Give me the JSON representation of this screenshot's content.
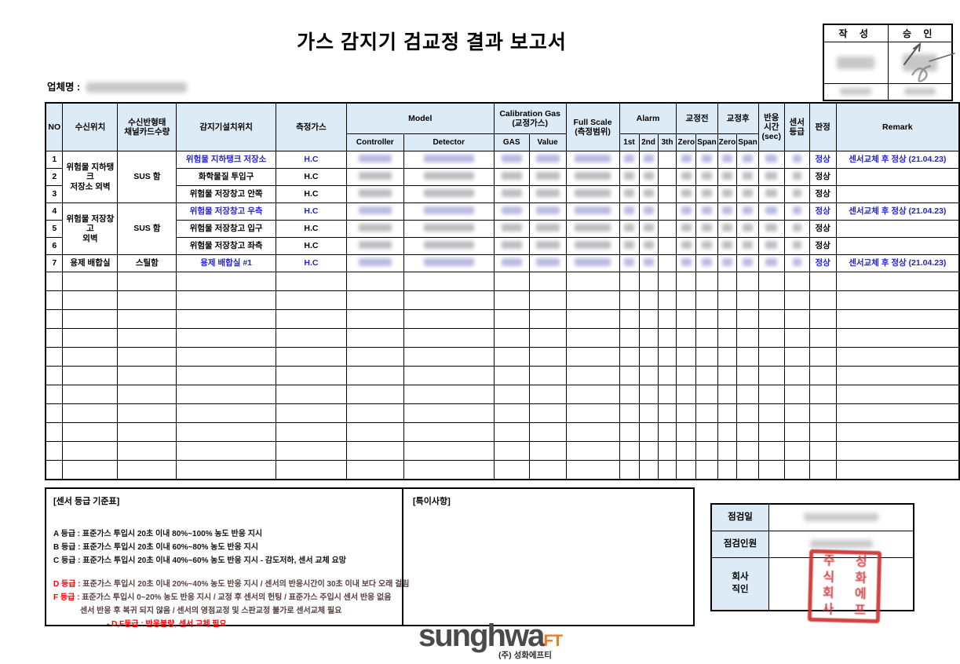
{
  "title": "가스 감지기 검교정 결과 보고서",
  "sign_box": {
    "left_label": "작 성",
    "right_label": "승 인"
  },
  "company": {
    "label": "업체명 :"
  },
  "table": {
    "headers": {
      "no": "NO",
      "receiver_loc": "수신위치",
      "panel": "수신반형태\n채널카드수량",
      "detector_loc": "감지기설치위치",
      "gas": "측정가스",
      "model": "Model",
      "controller": "Controller",
      "detector": "Detector",
      "cal_gas": "Calibration Gas\n(교정가스)",
      "cal_gas_sub": "GAS",
      "cal_value_sub": "Value",
      "full_scale": "Full Scale\n(측정범위)",
      "alarm": "Alarm",
      "alarm1": "1st",
      "alarm2": "2nd",
      "alarm3": "3th",
      "pre_cal": "교정전",
      "post_cal": "교정후",
      "zero": "Zero",
      "span": "Span",
      "resp_time": "반응\n시간\n(sec)",
      "sensor_grade": "센서\n등급",
      "judgement": "판정",
      "remark": "Remark"
    },
    "rows": [
      {
        "no": "1",
        "receiver_loc": "위험물 지하탱크\n저장소 외벽",
        "receiver_span": 3,
        "panel": "SUS 함",
        "panel_span": 3,
        "location": "위험물 지하탱크 저장소",
        "gas": "H.C",
        "highlight": true,
        "judgement": "정상",
        "remark": "센서교체 후 정상 (21.04.23)"
      },
      {
        "no": "2",
        "location": "화학물질 투입구",
        "gas": "H.C",
        "highlight": false,
        "judgement": "정상",
        "remark": ""
      },
      {
        "no": "3",
        "location": "위험물 저장창고 안쪽",
        "gas": "H.C",
        "highlight": false,
        "judgement": "정상",
        "remark": ""
      },
      {
        "no": "4",
        "receiver_loc": "위험물 저장창고\n외벽",
        "receiver_span": 3,
        "panel": "SUS 함",
        "panel_span": 3,
        "location": "위험물 저장창고 우측",
        "gas": "H.C",
        "highlight": true,
        "judgement": "정상",
        "remark": "센서교체 후 정상 (21.04.23)"
      },
      {
        "no": "5",
        "location": "위험물 저장창고 입구",
        "gas": "H.C",
        "highlight": false,
        "judgement": "정상",
        "remark": ""
      },
      {
        "no": "6",
        "location": "위험물 저장창고 좌측",
        "gas": "H.C",
        "highlight": false,
        "judgement": "정상",
        "remark": ""
      },
      {
        "no": "7",
        "receiver_loc": "용제 배합실",
        "receiver_span": 1,
        "panel": "스틸함",
        "panel_span": 1,
        "location": "용제 배합실 #1",
        "gas": "H.C",
        "highlight": true,
        "judgement": "정상",
        "remark": "센서교체 후 정상 (21.04.23)"
      }
    ],
    "empty_row_count": 11
  },
  "sensor_grade_table": {
    "title": "[센서 등급 기준표]",
    "lines": [
      {
        "parts": [
          {
            "text": "A 등급 : 표준가스 투입시 20초 이내 80%~100% 농도 반응 지시",
            "color": "black"
          }
        ]
      },
      {
        "parts": [
          {
            "text": "B 등급 : 표준가스 투입시 20초 이내 60%~80% 농도 반응 지시",
            "color": "black"
          }
        ]
      },
      {
        "parts": [
          {
            "text": "C 등급 : 표준가스 투입시 20초 이내 40%~60% 농도 반응 지시 - 감도저하, 센서 교체 요망",
            "color": "black"
          }
        ]
      },
      {
        "gap": true
      },
      {
        "parts": [
          {
            "text": "D 등급 : ",
            "color": "red"
          },
          {
            "text": "표준가스 투입시 20초 이내 20%~40% 농도 반응 지시 / 센서의 반응시간이 30초 이내 보다 오래 걸림",
            "color": "dark"
          }
        ]
      },
      {
        "parts": [
          {
            "text": "F 등급 : ",
            "color": "red"
          },
          {
            "text": "표준가스 투입시 0~20% 농도 반응 지시 / 교정 후 센서의 헌팅 / 표준가스 주입시 센서 반응 없음",
            "color": "dark"
          }
        ]
      },
      {
        "indent": 1,
        "parts": [
          {
            "text": "센서 반응 후 복귀 되지 않음 / 센서의 영점교정 및 스판교정 불가로 센서교체 필요",
            "color": "dark"
          }
        ]
      },
      {
        "indent": 2,
        "parts": [
          {
            "text": "- D,F등급 : 반응불량, 센서 교체 필요",
            "color": "red"
          }
        ]
      }
    ]
  },
  "special_notes": {
    "title": "[특이사항]"
  },
  "inspection": {
    "rows": [
      {
        "label": "점검일",
        "redacted": true
      },
      {
        "label": "점검인원",
        "redacted": true
      },
      {
        "label": "회사\n직인",
        "stamp": true
      }
    ],
    "seal_text": "주식회사 성화에프티",
    "seal_columns": [
      [
        "주",
        "식",
        "회",
        "사"
      ],
      [
        "성",
        "화",
        "에",
        "프"
      ]
    ]
  },
  "footer": {
    "brand": "sunghwa",
    "brand_suffix": "FT",
    "subtitle": "(주) 성화에프티"
  },
  "colors": {
    "header_fill": "#DDEBF7",
    "accent_blue": "#2424CB",
    "note_red": "#FF0000",
    "seal_red": "#CF3434",
    "logo_orange": "#F07A20"
  }
}
